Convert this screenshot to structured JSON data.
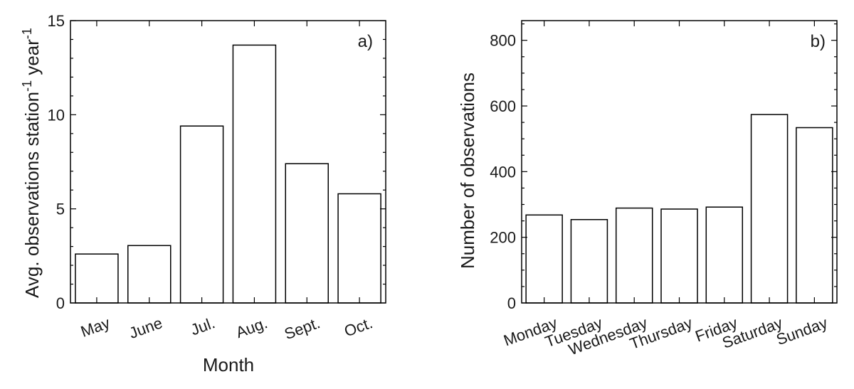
{
  "chart_data": [
    {
      "type": "bar",
      "panel_label": "a)",
      "categories": [
        "May",
        "June",
        "Jul.",
        "Aug.",
        "Sept.",
        "Oct."
      ],
      "values": [
        2.6,
        3.05,
        9.4,
        13.7,
        7.4,
        5.8
      ],
      "title": "",
      "xlabel": "Month",
      "ylabel_main": "Avg. observations station",
      "ylabel_sup1": "-1",
      "ylabel_mid": " year",
      "ylabel_sup2": "-1",
      "ylim": [
        0,
        15
      ],
      "yticks": [
        0,
        5,
        10,
        15
      ],
      "minor_step": 1,
      "grid": false,
      "legend": "none"
    },
    {
      "type": "bar",
      "panel_label": "b)",
      "categories": [
        "Monday",
        "Tuesday",
        "Wednesday",
        "Thursday",
        "Friday",
        "Saturday",
        "Sunday"
      ],
      "values": [
        268,
        254,
        289,
        286,
        292,
        574,
        534
      ],
      "title": "",
      "xlabel": "",
      "ylabel": "Number of observations",
      "ylim": [
        0,
        860
      ],
      "yticks": [
        0,
        200,
        400,
        600,
        800
      ],
      "minor_step": 50,
      "grid": false,
      "legend": "none"
    }
  ]
}
